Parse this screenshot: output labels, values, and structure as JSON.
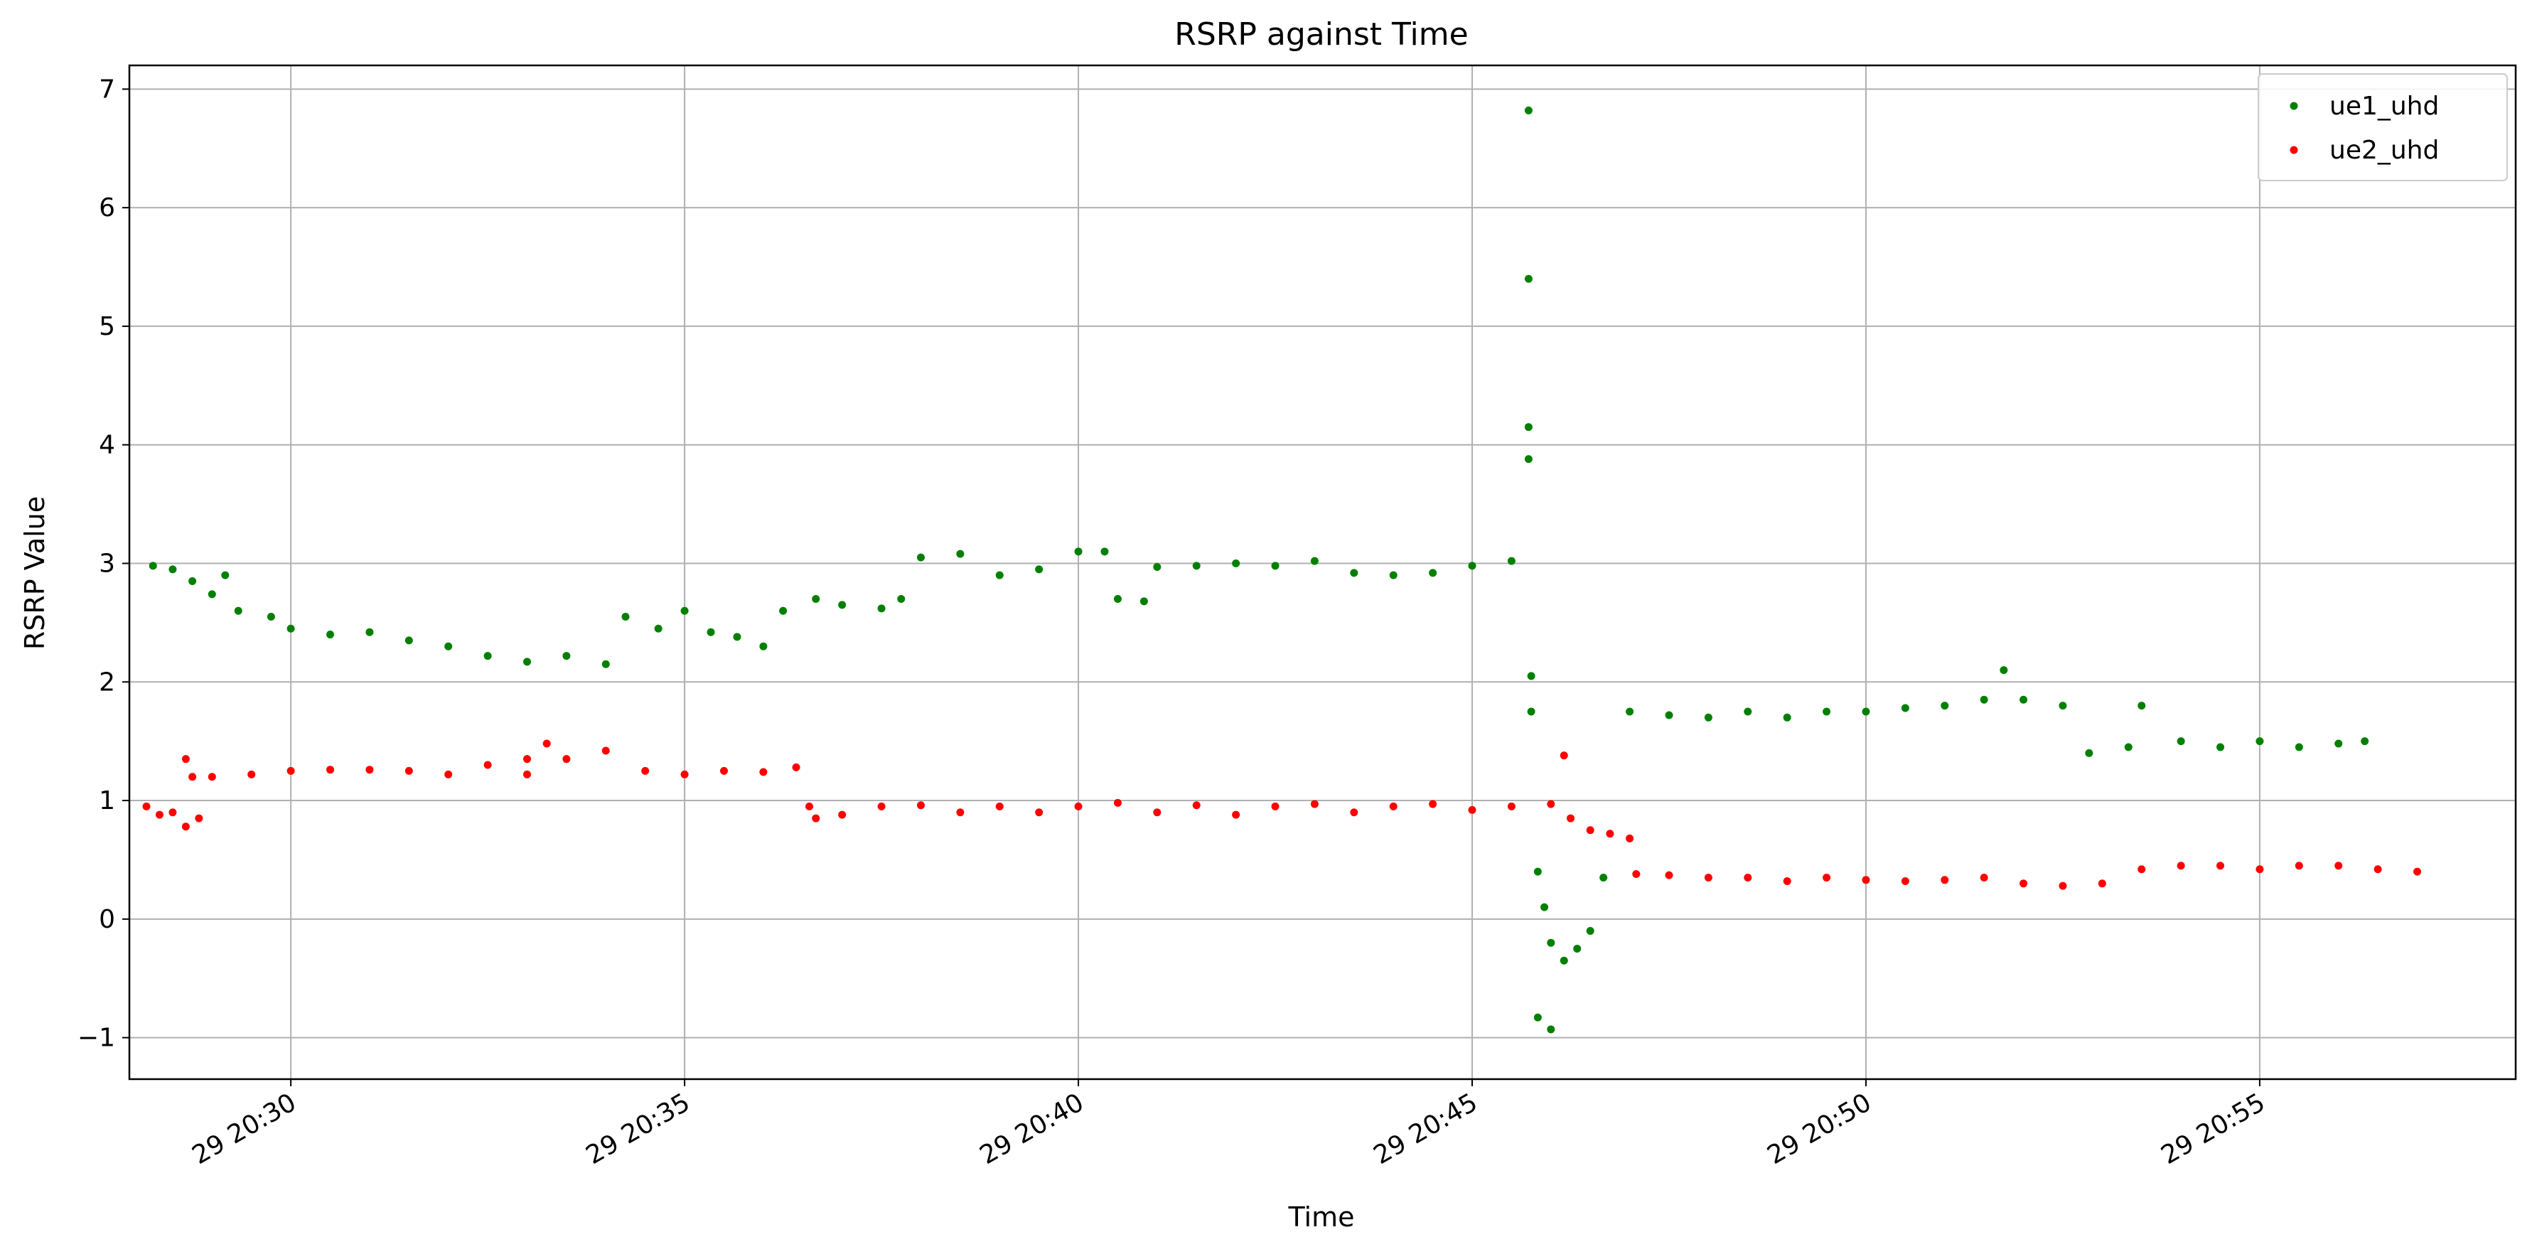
{
  "chart_data": {
    "type": "scatter",
    "title": "RSRP against Time",
    "xlabel": "Time",
    "ylabel": "RSRP Value",
    "xlim": [
      "29 20:27:57",
      "29 20:58:15"
    ],
    "ylim": [
      -1.35,
      7.2
    ],
    "x_ticks": [
      "29 20:30",
      "29 20:35",
      "29 20:40",
      "29 20:45",
      "29 20:50",
      "29 20:55"
    ],
    "y_ticks": [
      "−1",
      "0",
      "1",
      "2",
      "3",
      "4",
      "5",
      "6",
      "7"
    ],
    "grid": true,
    "legend_position": "top-right",
    "series": [
      {
        "name": "ue1_uhd",
        "color": "#008000",
        "points": [
          [
            "29 20:28:15",
            2.98
          ],
          [
            "29 20:28:30",
            2.95
          ],
          [
            "29 20:28:45",
            2.85
          ],
          [
            "29 20:29:00",
            2.74
          ],
          [
            "29 20:29:10",
            2.9
          ],
          [
            "29 20:29:20",
            2.6
          ],
          [
            "29 20:29:45",
            2.55
          ],
          [
            "29 20:30:00",
            2.45
          ],
          [
            "29 20:30:30",
            2.4
          ],
          [
            "29 20:31:00",
            2.42
          ],
          [
            "29 20:31:30",
            2.35
          ],
          [
            "29 20:32:00",
            2.3
          ],
          [
            "29 20:32:30",
            2.22
          ],
          [
            "29 20:33:00",
            2.17
          ],
          [
            "29 20:33:30",
            2.22
          ],
          [
            "29 20:34:00",
            2.15
          ],
          [
            "29 20:34:15",
            2.55
          ],
          [
            "29 20:34:40",
            2.45
          ],
          [
            "29 20:35:00",
            2.6
          ],
          [
            "29 20:35:20",
            2.42
          ],
          [
            "29 20:35:40",
            2.38
          ],
          [
            "29 20:36:00",
            2.3
          ],
          [
            "29 20:36:15",
            2.6
          ],
          [
            "29 20:36:40",
            2.7
          ],
          [
            "29 20:37:00",
            2.65
          ],
          [
            "29 20:37:30",
            2.62
          ],
          [
            "29 20:37:45",
            2.7
          ],
          [
            "29 20:38:00",
            3.05
          ],
          [
            "29 20:38:30",
            3.08
          ],
          [
            "29 20:39:00",
            2.9
          ],
          [
            "29 20:39:30",
            2.95
          ],
          [
            "29 20:40:00",
            3.1
          ],
          [
            "29 20:40:20",
            3.1
          ],
          [
            "29 20:40:30",
            2.7
          ],
          [
            "29 20:40:50",
            2.68
          ],
          [
            "29 20:41:00",
            2.97
          ],
          [
            "29 20:41:30",
            2.98
          ],
          [
            "29 20:42:00",
            3.0
          ],
          [
            "29 20:42:30",
            2.98
          ],
          [
            "29 20:43:00",
            3.02
          ],
          [
            "29 20:43:30",
            2.92
          ],
          [
            "29 20:44:00",
            2.9
          ],
          [
            "29 20:44:30",
            2.92
          ],
          [
            "29 20:45:00",
            2.98
          ],
          [
            "29 20:45:30",
            3.02
          ],
          [
            "29 20:45:43",
            6.82
          ],
          [
            "29 20:45:43",
            5.4
          ],
          [
            "29 20:45:43",
            4.15
          ],
          [
            "29 20:45:43",
            3.88
          ],
          [
            "29 20:45:45",
            2.05
          ],
          [
            "29 20:45:45",
            1.75
          ],
          [
            "29 20:45:50",
            0.4
          ],
          [
            "29 20:45:55",
            0.1
          ],
          [
            "29 20:46:00",
            -0.2
          ],
          [
            "29 20:46:10",
            -0.35
          ],
          [
            "29 20:46:20",
            -0.25
          ],
          [
            "29 20:46:30",
            -0.1
          ],
          [
            "29 20:45:50",
            -0.83
          ],
          [
            "29 20:46:00",
            -0.93
          ],
          [
            "29 20:46:40",
            0.35
          ],
          [
            "29 20:47:00",
            1.75
          ],
          [
            "29 20:47:30",
            1.72
          ],
          [
            "29 20:48:00",
            1.7
          ],
          [
            "29 20:48:30",
            1.75
          ],
          [
            "29 20:49:00",
            1.7
          ],
          [
            "29 20:49:30",
            1.75
          ],
          [
            "29 20:50:00",
            1.75
          ],
          [
            "29 20:50:30",
            1.78
          ],
          [
            "29 20:51:00",
            1.8
          ],
          [
            "29 20:51:30",
            1.85
          ],
          [
            "29 20:51:45",
            2.1
          ],
          [
            "29 20:52:00",
            1.85
          ],
          [
            "29 20:52:30",
            1.8
          ],
          [
            "29 20:52:50",
            1.4
          ],
          [
            "29 20:53:20",
            1.45
          ],
          [
            "29 20:53:30",
            1.8
          ],
          [
            "29 20:54:00",
            1.5
          ],
          [
            "29 20:54:30",
            1.45
          ],
          [
            "29 20:55:00",
            1.5
          ],
          [
            "29 20:55:30",
            1.45
          ],
          [
            "29 20:56:00",
            1.48
          ],
          [
            "29 20:56:20",
            1.5
          ]
        ]
      },
      {
        "name": "ue2_uhd",
        "color": "#ff0000",
        "points": [
          [
            "29 20:28:10",
            0.95
          ],
          [
            "29 20:28:20",
            0.88
          ],
          [
            "29 20:28:30",
            0.9
          ],
          [
            "29 20:28:40",
            0.78
          ],
          [
            "29 20:28:50",
            0.85
          ],
          [
            "29 20:28:40",
            1.35
          ],
          [
            "29 20:28:45",
            1.2
          ],
          [
            "29 20:29:00",
            1.2
          ],
          [
            "29 20:29:30",
            1.22
          ],
          [
            "29 20:30:00",
            1.25
          ],
          [
            "29 20:30:30",
            1.26
          ],
          [
            "29 20:31:00",
            1.26
          ],
          [
            "29 20:31:30",
            1.25
          ],
          [
            "29 20:32:00",
            1.22
          ],
          [
            "29 20:32:30",
            1.3
          ],
          [
            "29 20:33:00",
            1.35
          ],
          [
            "29 20:33:15",
            1.48
          ],
          [
            "29 20:33:30",
            1.35
          ],
          [
            "29 20:33:00",
            1.22
          ],
          [
            "29 20:34:00",
            1.42
          ],
          [
            "29 20:34:30",
            1.25
          ],
          [
            "29 20:35:00",
            1.22
          ],
          [
            "29 20:35:30",
            1.25
          ],
          [
            "29 20:36:00",
            1.24
          ],
          [
            "29 20:36:25",
            1.28
          ],
          [
            "29 20:36:35",
            0.95
          ],
          [
            "29 20:36:40",
            0.85
          ],
          [
            "29 20:37:00",
            0.88
          ],
          [
            "29 20:37:30",
            0.95
          ],
          [
            "29 20:38:00",
            0.96
          ],
          [
            "29 20:38:30",
            0.9
          ],
          [
            "29 20:39:00",
            0.95
          ],
          [
            "29 20:39:30",
            0.9
          ],
          [
            "29 20:40:00",
            0.95
          ],
          [
            "29 20:40:30",
            0.98
          ],
          [
            "29 20:41:00",
            0.9
          ],
          [
            "29 20:41:30",
            0.96
          ],
          [
            "29 20:42:00",
            0.88
          ],
          [
            "29 20:42:30",
            0.95
          ],
          [
            "29 20:43:00",
            0.97
          ],
          [
            "29 20:43:30",
            0.9
          ],
          [
            "29 20:44:00",
            0.95
          ],
          [
            "29 20:44:30",
            0.97
          ],
          [
            "29 20:45:00",
            0.92
          ],
          [
            "29 20:45:30",
            0.95
          ],
          [
            "29 20:46:00",
            0.97
          ],
          [
            "29 20:46:10",
            1.38
          ],
          [
            "29 20:46:15",
            0.85
          ],
          [
            "29 20:46:30",
            0.75
          ],
          [
            "29 20:46:45",
            0.72
          ],
          [
            "29 20:47:00",
            0.68
          ],
          [
            "29 20:47:05",
            0.38
          ],
          [
            "29 20:47:30",
            0.37
          ],
          [
            "29 20:48:00",
            0.35
          ],
          [
            "29 20:48:30",
            0.35
          ],
          [
            "29 20:49:00",
            0.32
          ],
          [
            "29 20:49:30",
            0.35
          ],
          [
            "29 20:50:00",
            0.33
          ],
          [
            "29 20:50:30",
            0.32
          ],
          [
            "29 20:51:00",
            0.33
          ],
          [
            "29 20:51:30",
            0.35
          ],
          [
            "29 20:52:00",
            0.3
          ],
          [
            "29 20:52:30",
            0.28
          ],
          [
            "29 20:53:00",
            0.3
          ],
          [
            "29 20:53:30",
            0.42
          ],
          [
            "29 20:54:00",
            0.45
          ],
          [
            "29 20:54:30",
            0.45
          ],
          [
            "29 20:55:00",
            0.42
          ],
          [
            "29 20:55:30",
            0.45
          ],
          [
            "29 20:56:00",
            0.45
          ],
          [
            "29 20:56:30",
            0.42
          ],
          [
            "29 20:57:00",
            0.4
          ]
        ]
      }
    ]
  }
}
